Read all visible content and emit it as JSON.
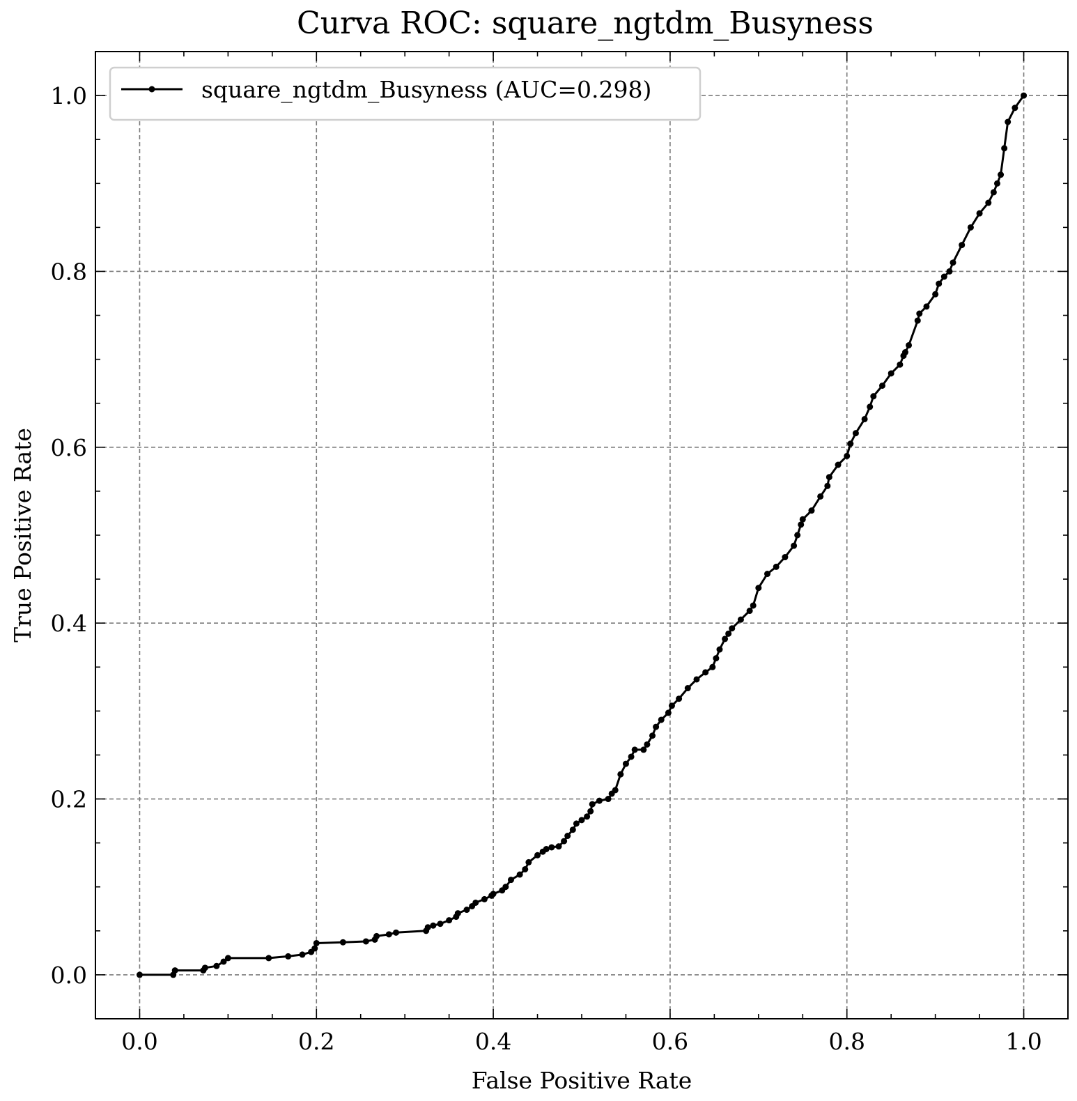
{
  "chart_data": {
    "type": "line",
    "title": "Curva ROC: square_ngtdm_Busyness",
    "xlabel": "False Positive Rate",
    "ylabel": "True Positive Rate",
    "xlim": [
      -0.05,
      1.05
    ],
    "ylim": [
      -0.05,
      1.05
    ],
    "x_ticks": [
      0.0,
      0.2,
      0.4,
      0.6,
      0.8,
      1.0
    ],
    "y_ticks": [
      0.0,
      0.2,
      0.4,
      0.6,
      0.8,
      1.0
    ],
    "x_tick_labels": [
      "0.0",
      "0.2",
      "0.4",
      "0.6",
      "0.8",
      "1.0"
    ],
    "y_tick_labels": [
      "0.0",
      "0.2",
      "0.4",
      "0.6",
      "0.8",
      "1.0"
    ],
    "grid": true,
    "legend_position": "top-left",
    "series": [
      {
        "name": "square_ngtdm_Busyness (AUC=0.298)",
        "color": "#000000",
        "marker": "dot",
        "x": [
          0.0,
          0.038,
          0.04,
          0.072,
          0.074,
          0.087,
          0.095,
          0.1,
          0.146,
          0.168,
          0.184,
          0.194,
          0.198,
          0.2,
          0.23,
          0.256,
          0.266,
          0.268,
          0.282,
          0.29,
          0.324,
          0.326,
          0.332,
          0.34,
          0.35,
          0.358,
          0.36,
          0.37,
          0.376,
          0.38,
          0.39,
          0.398,
          0.4,
          0.41,
          0.414,
          0.42,
          0.43,
          0.436,
          0.44,
          0.45,
          0.456,
          0.46,
          0.466,
          0.474,
          0.48,
          0.484,
          0.49,
          0.494,
          0.5,
          0.506,
          0.51,
          0.512,
          0.52,
          0.53,
          0.534,
          0.538,
          0.544,
          0.55,
          0.556,
          0.56,
          0.57,
          0.574,
          0.58,
          0.584,
          0.59,
          0.598,
          0.602,
          0.61,
          0.62,
          0.63,
          0.64,
          0.648,
          0.652,
          0.656,
          0.662,
          0.666,
          0.67,
          0.68,
          0.69,
          0.694,
          0.7,
          0.71,
          0.72,
          0.73,
          0.74,
          0.744,
          0.748,
          0.75,
          0.76,
          0.77,
          0.778,
          0.78,
          0.79,
          0.8,
          0.804,
          0.81,
          0.82,
          0.826,
          0.83,
          0.84,
          0.85,
          0.86,
          0.864,
          0.866,
          0.87,
          0.88,
          0.882,
          0.89,
          0.9,
          0.904,
          0.91,
          0.916,
          0.92,
          0.93,
          0.94,
          0.95,
          0.96,
          0.966,
          0.97,
          0.974,
          0.978,
          0.982,
          0.99,
          1.0
        ],
        "y": [
          0.0,
          0.0,
          0.005,
          0.005,
          0.008,
          0.01,
          0.015,
          0.019,
          0.019,
          0.021,
          0.023,
          0.026,
          0.03,
          0.036,
          0.037,
          0.038,
          0.04,
          0.044,
          0.046,
          0.048,
          0.05,
          0.054,
          0.056,
          0.058,
          0.062,
          0.066,
          0.07,
          0.074,
          0.078,
          0.082,
          0.086,
          0.09,
          0.092,
          0.096,
          0.1,
          0.108,
          0.114,
          0.12,
          0.128,
          0.136,
          0.14,
          0.143,
          0.145,
          0.146,
          0.152,
          0.158,
          0.165,
          0.172,
          0.176,
          0.18,
          0.186,
          0.194,
          0.198,
          0.2,
          0.206,
          0.21,
          0.228,
          0.24,
          0.248,
          0.256,
          0.256,
          0.262,
          0.272,
          0.282,
          0.29,
          0.298,
          0.306,
          0.314,
          0.326,
          0.336,
          0.344,
          0.35,
          0.36,
          0.37,
          0.382,
          0.388,
          0.394,
          0.404,
          0.414,
          0.42,
          0.44,
          0.456,
          0.464,
          0.475,
          0.488,
          0.5,
          0.512,
          0.518,
          0.528,
          0.544,
          0.556,
          0.566,
          0.58,
          0.59,
          0.604,
          0.616,
          0.632,
          0.646,
          0.658,
          0.67,
          0.684,
          0.694,
          0.704,
          0.708,
          0.716,
          0.744,
          0.752,
          0.76,
          0.774,
          0.786,
          0.794,
          0.8,
          0.81,
          0.83,
          0.85,
          0.866,
          0.878,
          0.89,
          0.9,
          0.91,
          0.94,
          0.97,
          0.986,
          1.0
        ]
      }
    ]
  }
}
